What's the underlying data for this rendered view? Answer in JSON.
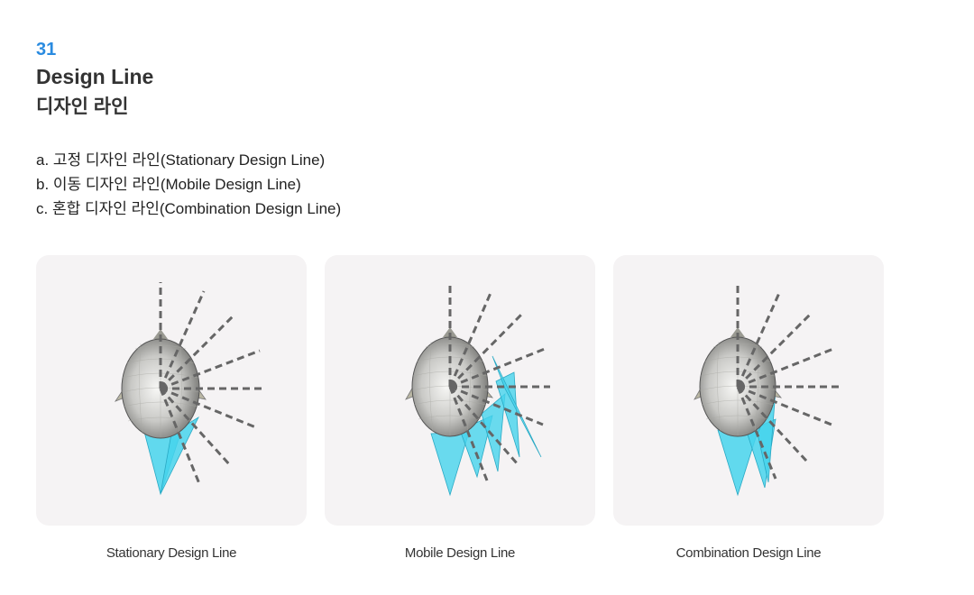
{
  "section": {
    "number": "31",
    "title_en": "Design Line",
    "title_ko": "디자인 라인"
  },
  "list": [
    "a. 고정 디자인 라인(Stationary Design Line)",
    "b. 이동 디자인 라인(Mobile Design Line)",
    "c. 혼합 디자인 라인(Combination Design Line)"
  ],
  "panels": [
    {
      "caption": "Stationary Design Line",
      "variant": "stationary"
    },
    {
      "caption": "Mobile Design Line",
      "variant": "mobile"
    },
    {
      "caption": "Combination Design Line",
      "variant": "combination"
    }
  ],
  "colors": {
    "accent": "#2a8be0",
    "panel_bg": "#f5f3f4",
    "sector_fill": "#46d3ec",
    "guide_line": "#666666"
  }
}
